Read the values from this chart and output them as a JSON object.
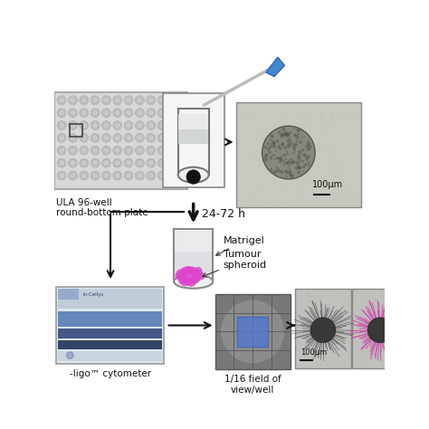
{
  "bg_color": "#ffffff",
  "labels": {
    "plate": "ULA 96-well\nround-bottom plate",
    "time": "24-72 h",
    "matrigel": "Matrigel",
    "spheroid": "Tumour\nspheroid",
    "cytometer": "-ligo™ cytometer",
    "field": "1/16 field of\nview/well",
    "scale1": "100μm",
    "scale2": "100μm"
  },
  "colors": {
    "arrow": "#1a1a1a",
    "plate_bg": "#d8d8d8",
    "plate_edge": "#999999",
    "well_fill": "#e8e8e8",
    "well_edge": "#aaaaaa",
    "tube_body": "#f0f0f0",
    "tube_edge": "#888888",
    "tube_liquid_top": "#e8e8e8",
    "tube_liquid_mid": "#d0d4d0",
    "tube_pellet": "#111111",
    "matrigel_pink": "#cc66cc",
    "spheroid_pink": "#dd44cc",
    "pipette_shaft": "#c0c0c0",
    "pipette_blue": "#4488dd",
    "grid_bg": "#787878",
    "grid_cell": "#686868",
    "grid_circle": "#a0a0a0",
    "grid_blue": "#5577cc",
    "micro_bg": "#c0c0c0",
    "micro_bg2": "#b8b8b8",
    "micro_core": "#3a3a3a",
    "micro_invasion_bw": "#404040",
    "micro_invasion_pink": "#cc44aa",
    "cytometer_body": "#dce4ee",
    "cytometer_stripe1": "#8899bb",
    "cytometer_stripe2": "#445588",
    "cytometer_stripe3": "#334477",
    "scale_bar": "#111111",
    "zoom_line": "#666666",
    "text_color": "#111111"
  }
}
